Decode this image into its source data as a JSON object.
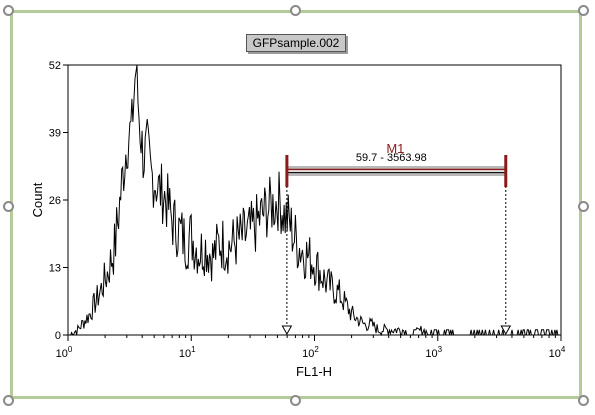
{
  "colors": {
    "frame": "#b5cc9a",
    "marker": "#8b1a1a",
    "histogram": "#000000"
  },
  "chart_data": {
    "type": "histogram",
    "title": "GFPsample.002",
    "xlabel": "FL1-H",
    "ylabel": "Count",
    "x_scale": "log",
    "xlim": [
      1,
      10000
    ],
    "ylim": [
      0,
      52
    ],
    "y_ticks": [
      "0",
      "13",
      "26",
      "39",
      "52"
    ],
    "x_ticks": [
      {
        "value": 1,
        "base": "10",
        "exp": "0"
      },
      {
        "value": 10,
        "base": "10",
        "exp": "1"
      },
      {
        "value": 100,
        "base": "10",
        "exp": "2"
      },
      {
        "value": 1000,
        "base": "10",
        "exp": "3"
      },
      {
        "value": 10000,
        "base": "10",
        "exp": "4"
      }
    ],
    "series": [
      {
        "x": [
          1.2,
          1.5,
          1.8,
          2.1,
          2.4,
          2.7,
          3.0,
          3.3,
          3.55,
          3.8,
          4.1,
          4.4,
          4.7,
          5.0,
          5.5,
          6.0,
          6.5,
          7.0,
          7.5,
          8.0,
          9.0,
          10.0,
          11.5,
          13.0,
          15.0,
          17.0,
          20.0,
          23.0,
          27.0,
          31.0,
          35.0,
          40.0,
          46.0,
          52.0,
          57.0,
          62.0,
          68.0,
          75.0,
          82.0,
          90.0,
          100.0,
          112.0,
          125.0,
          140.0,
          158.0,
          178.0,
          200.0,
          225.0,
          255.0,
          290.0,
          330.0,
          380.0,
          440.0,
          520.0,
          620.0,
          750.0,
          900.0,
          1100.0,
          1400.0,
          1800.0,
          2500.0,
          3500.0,
          5000.0
        ],
        "y": [
          1,
          4,
          8,
          12,
          17,
          28,
          37,
          40,
          52,
          41,
          34,
          36,
          31,
          30,
          28,
          27,
          25,
          22,
          21,
          20,
          18,
          19,
          16,
          17,
          15,
          18,
          17,
          18,
          19,
          20,
          22,
          24,
          25,
          26,
          23,
          22,
          19,
          17,
          16,
          15,
          14,
          12,
          10,
          9,
          8,
          6,
          4,
          3,
          2,
          2,
          1,
          1,
          1,
          1,
          0,
          1,
          0,
          0,
          0,
          0,
          0,
          0,
          0
        ]
      }
    ],
    "marker": {
      "name": "M1",
      "range_label": "59.7 - 3563.98",
      "start": 59.7,
      "end": 3563.98
    }
  }
}
